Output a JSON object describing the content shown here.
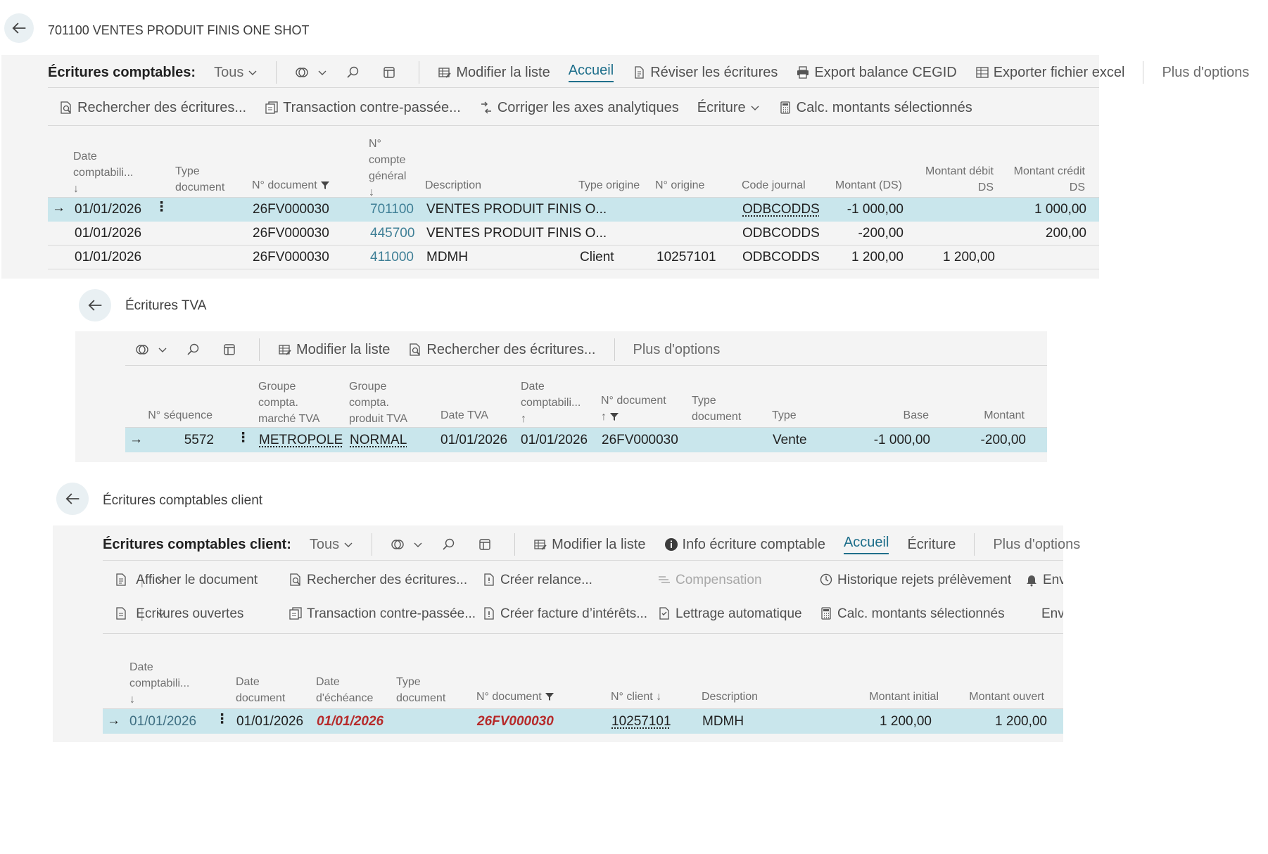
{
  "ledger": {
    "title": "701100 VENTES PRODUIT FINIS ONE SHOT",
    "toolbar_label": "Écritures comptables:",
    "filter": "Tous",
    "actions": [
      "Modifier la liste",
      "Accueil",
      "Réviser les écritures",
      "Export balance CEGID",
      "Exporter fichier excel",
      "Plus d'options"
    ],
    "actions2": [
      "Rechercher des écritures...",
      "Transaction contre-passée...",
      "Corriger les axes analytiques",
      "Écriture",
      "Calc. montants sélectionnés"
    ],
    "columns": {
      "date": "Date comptabili...",
      "type_doc": "Type document",
      "doc_no": "N° document",
      "account": "N° compte général",
      "description": "Description",
      "type_origin": "Type origine",
      "origin_no": "N° origine",
      "journal": "Code journal",
      "amount": "Montant (DS)",
      "debit": "Montant débit DS",
      "credit": "Montant crédit DS"
    },
    "rows": [
      {
        "date": "01/01/2026",
        "doc_no": "26FV000030",
        "account": "701100",
        "description": "VENTES PRODUIT FINIS O...",
        "type_origin": "",
        "origin_no": "",
        "journal": "ODBCODDS",
        "amount": "-1 000,00",
        "debit": "",
        "credit": "1 000,00"
      },
      {
        "date": "01/01/2026",
        "doc_no": "26FV000030",
        "account": "445700",
        "description": "VENTES PRODUIT FINIS O...",
        "type_origin": "",
        "origin_no": "",
        "journal": "ODBCODDS",
        "amount": "-200,00",
        "debit": "",
        "credit": "200,00"
      },
      {
        "date": "01/01/2026",
        "doc_no": "26FV000030",
        "account": "411000",
        "description": "MDMH",
        "type_origin": "Client",
        "origin_no": "10257101",
        "journal": "ODBCODDS",
        "amount": "1 200,00",
        "debit": "1 200,00",
        "credit": ""
      }
    ]
  },
  "vat": {
    "title": "Écritures TVA",
    "actions": [
      "Modifier la liste",
      "Rechercher des écritures...",
      "Plus d'options"
    ],
    "columns": {
      "seq": "N° séquence",
      "market_group": "Groupe compta. marché TVA",
      "product_group": "Groupe compta. produit TVA",
      "vat_date": "Date TVA",
      "posting_date": "Date comptabili...",
      "doc_no": "N° document",
      "type_doc": "Type document",
      "type": "Type",
      "base": "Base",
      "amount": "Montant"
    },
    "row": {
      "seq": "5572",
      "market_group": "METROPOLE",
      "product_group": "NORMAL",
      "vat_date": "01/01/2026",
      "posting_date": "01/01/2026",
      "doc_no": "26FV000030",
      "type": "Vente",
      "base": "-1 000,00",
      "amount": "-200,00"
    }
  },
  "customer": {
    "title": "Écritures comptables client",
    "toolbar_label": "Écritures comptables client:",
    "filter": "Tous",
    "actions": [
      "Modifier la liste",
      "Info écriture comptable",
      "Accueil",
      "Écriture",
      "Plus d'options"
    ],
    "actions_row1": [
      "Afficher le document",
      "Rechercher des écritures...",
      "Créer relance...",
      "Compensation",
      "Historique rejets prélèvement",
      "Envo"
    ],
    "actions_row2": [
      "Ecritures ouvertes",
      "Transaction contre-passée...",
      "Créer facture d’intérêts...",
      "Lettrage automatique",
      "Calc. montants sélectionnés",
      "Envo"
    ],
    "columns": {
      "posting_date": "Date comptabili...",
      "doc_date": "Date document",
      "due_date": "Date d'échéance",
      "type_doc": "Type document",
      "doc_no": "N° document",
      "client_no": "N° client",
      "description": "Description",
      "initial": "Montant initial",
      "open": "Montant ouvert"
    },
    "row": {
      "posting_date": "01/01/2026",
      "doc_date": "01/01/2026",
      "due_date": "01/01/2026",
      "doc_no": "26FV000030",
      "client_no": "10257101",
      "description": "MDMH",
      "initial": "1 200,00",
      "open": "1 200,00"
    }
  },
  "colors": {
    "accent": "#1f6f8b",
    "selected_row": "#c9e6ec",
    "panel": "#f4f4f4",
    "overdue": "#b62a2a"
  }
}
